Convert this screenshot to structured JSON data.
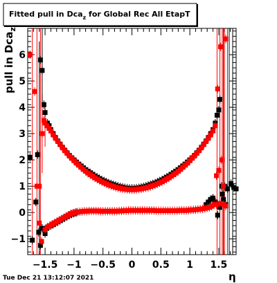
{
  "chart_data": {
    "type": "scatter",
    "title": "Fitted pull in Dca",
    "title_sub": "z",
    "title_tail": " for Global Rec All EtapT",
    "ylabel": "pull in Dca",
    "ylabel_sub": "z",
    "xlabel": "η",
    "xlim": [
      -1.8,
      1.8
    ],
    "ylim": [
      -1.6,
      7.0
    ],
    "x_ticks": [
      -1.5,
      -1,
      -0.5,
      0,
      0.5,
      1,
      1.5
    ],
    "x_tick_labels": [
      "−1.5",
      "−1",
      "−0.5",
      "0",
      "0.5",
      "1",
      "1.5"
    ],
    "y_ticks": [
      -1,
      0,
      1,
      2,
      3,
      4,
      5,
      6
    ],
    "y_tick_labels": [
      "−1",
      "0",
      "1",
      "2",
      "3",
      "4",
      "5",
      "6"
    ],
    "footer": "Tue Dec 21 13:12:07 2021",
    "series": [
      {
        "color": "#000000",
        "points": [
          [
            -1.76,
            2.1
          ],
          [
            -1.72,
            -1.05
          ],
          [
            -1.66,
            0.4
          ],
          [
            -1.63,
            2.2
          ],
          [
            -1.61,
            -0.75
          ],
          [
            -1.58,
            5.8
          ],
          [
            -1.58,
            -1.25
          ],
          [
            -1.55,
            -0.6
          ],
          [
            -1.55,
            5.4
          ],
          [
            -1.52,
            4.1
          ],
          [
            -1.5,
            3.8
          ],
          [
            -1.5,
            -0.8
          ],
          [
            -1.47,
            -0.6
          ],
          [
            -1.46,
            3.4
          ],
          [
            -1.43,
            3.3
          ],
          [
            -1.4,
            3.15
          ],
          [
            -1.4,
            -0.5
          ],
          [
            -1.36,
            3.0
          ],
          [
            -1.36,
            -0.45
          ],
          [
            -1.32,
            2.85
          ],
          [
            -1.32,
            -0.4
          ],
          [
            -1.28,
            2.72
          ],
          [
            -1.28,
            -0.35
          ],
          [
            -1.24,
            2.6
          ],
          [
            -1.24,
            -0.3
          ],
          [
            -1.2,
            2.48
          ],
          [
            -1.2,
            -0.25
          ],
          [
            -1.16,
            2.37
          ],
          [
            -1.16,
            -0.2
          ],
          [
            -1.12,
            2.27
          ],
          [
            -1.12,
            -0.15
          ],
          [
            -1.08,
            2.17
          ],
          [
            -1.08,
            -0.1
          ],
          [
            -1.04,
            2.08
          ],
          [
            -1.04,
            -0.06
          ],
          [
            -1.0,
            2.0
          ],
          [
            -1.0,
            -0.03
          ],
          [
            -0.96,
            1.92
          ],
          [
            -0.96,
            0.0
          ],
          [
            -0.92,
            1.84
          ],
          [
            -0.88,
            1.77
          ],
          [
            -0.84,
            1.7
          ],
          [
            -0.8,
            1.63
          ],
          [
            -0.76,
            1.57
          ],
          [
            -0.72,
            1.51
          ],
          [
            -0.68,
            1.45
          ],
          [
            -0.64,
            1.39
          ],
          [
            -0.6,
            1.34
          ],
          [
            -0.56,
            1.29
          ],
          [
            -0.52,
            1.24
          ],
          [
            -0.48,
            1.2
          ],
          [
            -0.44,
            1.16
          ],
          [
            -0.4,
            1.12
          ],
          [
            -0.36,
            1.09
          ],
          [
            -0.32,
            1.06
          ],
          [
            -0.28,
            1.03
          ],
          [
            -0.24,
            1.0
          ],
          [
            -0.2,
            0.98
          ],
          [
            -0.16,
            0.96
          ],
          [
            -0.12,
            0.94
          ],
          [
            -0.08,
            0.93
          ],
          [
            -0.04,
            0.92
          ],
          [
            0.0,
            0.92
          ],
          [
            0.04,
            0.92
          ],
          [
            0.08,
            0.93
          ],
          [
            0.12,
            0.94
          ],
          [
            0.16,
            0.96
          ],
          [
            0.2,
            0.98
          ],
          [
            0.24,
            1.0
          ],
          [
            0.28,
            1.03
          ],
          [
            0.32,
            1.06
          ],
          [
            0.36,
            1.09
          ],
          [
            0.4,
            1.12
          ],
          [
            0.44,
            1.16
          ],
          [
            0.48,
            1.2
          ],
          [
            0.52,
            1.24
          ],
          [
            0.56,
            1.29
          ],
          [
            0.6,
            1.34
          ],
          [
            0.64,
            1.39
          ],
          [
            0.68,
            1.45
          ],
          [
            0.72,
            1.51
          ],
          [
            0.76,
            1.57
          ],
          [
            0.8,
            1.63
          ],
          [
            0.84,
            1.7
          ],
          [
            0.88,
            1.77
          ],
          [
            0.92,
            1.84
          ],
          [
            0.96,
            1.92
          ],
          [
            1.0,
            2.0
          ],
          [
            1.04,
            2.08
          ],
          [
            1.08,
            2.17
          ],
          [
            1.12,
            2.27
          ],
          [
            1.16,
            2.37
          ],
          [
            1.2,
            2.48
          ],
          [
            1.24,
            2.6
          ],
          [
            1.28,
            2.72
          ],
          [
            1.32,
            2.85
          ],
          [
            1.36,
            3.0
          ],
          [
            1.4,
            3.15
          ],
          [
            1.44,
            3.4
          ],
          [
            1.47,
            3.7
          ],
          [
            1.5,
            3.9
          ],
          [
            1.52,
            4.3
          ],
          [
            1.55,
            1.0
          ],
          [
            1.58,
            0.5
          ],
          [
            1.62,
            0.3
          ],
          [
            1.28,
            0.3
          ],
          [
            1.32,
            0.4
          ],
          [
            1.36,
            0.5
          ],
          [
            1.4,
            0.55
          ],
          [
            1.44,
            0.4
          ],
          [
            1.48,
            -0.1
          ],
          [
            1.52,
            0.2
          ],
          [
            1.56,
            0.7
          ],
          [
            1.6,
            1.0
          ],
          [
            1.65,
            0.9
          ],
          [
            1.71,
            1.1
          ],
          [
            1.76,
            0.95
          ],
          [
            1.8,
            0.9
          ]
        ]
      },
      {
        "color": "#ff0000",
        "points": [
          [
            -1.76,
            6.0
          ],
          [
            -1.68,
            4.6
          ],
          [
            -1.64,
            1.0
          ],
          [
            -1.6,
            1.0
          ],
          [
            -1.6,
            -0.4
          ],
          [
            -1.56,
            -1.1
          ],
          [
            -1.55,
            3.0
          ],
          [
            -1.52,
            3.5
          ],
          [
            -1.5,
            3.4
          ],
          [
            -1.5,
            -0.65
          ],
          [
            -1.47,
            3.3
          ],
          [
            -1.46,
            -0.55
          ],
          [
            -1.43,
            3.2
          ],
          [
            -1.42,
            -0.5
          ],
          [
            -1.4,
            3.1
          ],
          [
            -1.38,
            -0.45
          ],
          [
            -1.36,
            2.95
          ],
          [
            -1.34,
            -0.4
          ],
          [
            -1.32,
            2.82
          ],
          [
            -1.3,
            -0.35
          ],
          [
            -1.28,
            2.7
          ],
          [
            -1.26,
            -0.3
          ],
          [
            -1.24,
            2.58
          ],
          [
            -1.22,
            -0.25
          ],
          [
            -1.2,
            2.46
          ],
          [
            -1.18,
            -0.2
          ],
          [
            -1.16,
            2.35
          ],
          [
            -1.14,
            -0.15
          ],
          [
            -1.12,
            2.25
          ],
          [
            -1.1,
            -0.1
          ],
          [
            -1.08,
            2.15
          ],
          [
            -1.06,
            -0.05
          ],
          [
            -1.04,
            2.06
          ],
          [
            -1.02,
            -0.02
          ],
          [
            -1.0,
            1.97
          ],
          [
            -0.98,
            0.0
          ],
          [
            -0.96,
            1.88
          ],
          [
            -0.94,
            0.02
          ],
          [
            -0.92,
            1.8
          ],
          [
            -0.9,
            0.03
          ],
          [
            -0.88,
            1.72
          ],
          [
            -0.86,
            0.04
          ],
          [
            -0.84,
            1.64
          ],
          [
            -0.82,
            0.05
          ],
          [
            -0.8,
            1.57
          ],
          [
            -0.78,
            0.05
          ],
          [
            -0.76,
            1.5
          ],
          [
            -0.74,
            0.06
          ],
          [
            -0.72,
            1.44
          ],
          [
            -0.7,
            0.06
          ],
          [
            -0.68,
            1.38
          ],
          [
            -0.66,
            0.06
          ],
          [
            -0.64,
            1.32
          ],
          [
            -0.62,
            0.06
          ],
          [
            -0.6,
            1.27
          ],
          [
            -0.58,
            0.06
          ],
          [
            -0.56,
            1.22
          ],
          [
            -0.54,
            0.05
          ],
          [
            -0.52,
            1.17
          ],
          [
            -0.5,
            0.05
          ],
          [
            -0.48,
            1.13
          ],
          [
            -0.46,
            0.05
          ],
          [
            -0.44,
            1.09
          ],
          [
            -0.42,
            0.05
          ],
          [
            -0.4,
            1.05
          ],
          [
            -0.38,
            0.05
          ],
          [
            -0.36,
            1.02
          ],
          [
            -0.34,
            0.05
          ],
          [
            -0.32,
            0.99
          ],
          [
            -0.3,
            0.05
          ],
          [
            -0.28,
            0.96
          ],
          [
            -0.26,
            0.05
          ],
          [
            -0.24,
            0.94
          ],
          [
            -0.22,
            0.06
          ],
          [
            -0.2,
            0.92
          ],
          [
            -0.18,
            0.06
          ],
          [
            -0.16,
            0.9
          ],
          [
            -0.14,
            0.07
          ],
          [
            -0.12,
            0.89
          ],
          [
            -0.1,
            0.07
          ],
          [
            -0.08,
            0.88
          ],
          [
            -0.06,
            0.08
          ],
          [
            -0.04,
            0.87
          ],
          [
            -0.02,
            0.08
          ],
          [
            0.0,
            0.87
          ],
          [
            0.02,
            0.08
          ],
          [
            0.04,
            0.87
          ],
          [
            0.06,
            0.08
          ],
          [
            0.08,
            0.88
          ],
          [
            0.1,
            0.08
          ],
          [
            0.12,
            0.89
          ],
          [
            0.14,
            0.08
          ],
          [
            0.16,
            0.9
          ],
          [
            0.18,
            0.08
          ],
          [
            0.2,
            0.92
          ],
          [
            0.22,
            0.08
          ],
          [
            0.24,
            0.94
          ],
          [
            0.26,
            0.08
          ],
          [
            0.28,
            0.96
          ],
          [
            0.3,
            0.08
          ],
          [
            0.32,
            0.99
          ],
          [
            0.34,
            0.08
          ],
          [
            0.36,
            1.02
          ],
          [
            0.38,
            0.08
          ],
          [
            0.4,
            1.05
          ],
          [
            0.42,
            0.07
          ],
          [
            0.44,
            1.09
          ],
          [
            0.46,
            0.07
          ],
          [
            0.48,
            1.13
          ],
          [
            0.5,
            0.07
          ],
          [
            0.52,
            1.17
          ],
          [
            0.54,
            0.07
          ],
          [
            0.56,
            1.22
          ],
          [
            0.58,
            0.07
          ],
          [
            0.6,
            1.27
          ],
          [
            0.62,
            0.07
          ],
          [
            0.64,
            1.32
          ],
          [
            0.66,
            0.07
          ],
          [
            0.68,
            1.38
          ],
          [
            0.7,
            0.07
          ],
          [
            0.72,
            1.44
          ],
          [
            0.74,
            0.07
          ],
          [
            0.76,
            1.5
          ],
          [
            0.78,
            0.07
          ],
          [
            0.8,
            1.57
          ],
          [
            0.82,
            0.08
          ],
          [
            0.84,
            1.64
          ],
          [
            0.86,
            0.08
          ],
          [
            0.88,
            1.72
          ],
          [
            0.9,
            0.08
          ],
          [
            0.92,
            1.8
          ],
          [
            0.94,
            0.08
          ],
          [
            0.96,
            1.88
          ],
          [
            0.98,
            0.09
          ],
          [
            1.0,
            1.97
          ],
          [
            1.02,
            0.1
          ],
          [
            1.04,
            2.06
          ],
          [
            1.06,
            0.1
          ],
          [
            1.08,
            2.15
          ],
          [
            1.1,
            0.11
          ],
          [
            1.12,
            2.25
          ],
          [
            1.14,
            0.12
          ],
          [
            1.16,
            2.35
          ],
          [
            1.18,
            0.13
          ],
          [
            1.2,
            2.46
          ],
          [
            1.22,
            0.14
          ],
          [
            1.24,
            2.58
          ],
          [
            1.26,
            0.16
          ],
          [
            1.28,
            2.7
          ],
          [
            1.3,
            0.18
          ],
          [
            1.32,
            2.82
          ],
          [
            1.34,
            0.2
          ],
          [
            1.36,
            2.95
          ],
          [
            1.38,
            0.24
          ],
          [
            1.4,
            3.1
          ],
          [
            1.42,
            0.3
          ],
          [
            1.44,
            3.3
          ],
          [
            1.46,
            1.4
          ],
          [
            1.48,
            4.7
          ],
          [
            1.5,
            1.6
          ],
          [
            1.53,
            6.3
          ],
          [
            1.55,
            2.0
          ],
          [
            1.58,
            1.0
          ],
          [
            1.62,
            6.6
          ],
          [
            1.58,
            0.3
          ],
          [
            1.62,
            0.25
          ],
          [
            1.52,
            0.35
          ],
          [
            1.46,
            0.3
          ]
        ]
      }
    ],
    "error_bars": [
      {
        "color": "#ff0000",
        "x": -1.72,
        "y0": -1.6,
        "y1": 7.0
      },
      {
        "color": "#ff0000",
        "x": -1.64,
        "y0": -1.6,
        "y1": 7.0
      },
      {
        "color": "#ff0000",
        "x": -1.58,
        "y0": -1.6,
        "y1": 7.0
      },
      {
        "color": "#ff0000",
        "x": -1.55,
        "y0": 1.5,
        "y1": 4.5
      },
      {
        "color": "#ff0000",
        "x": -1.5,
        "y0": 2.5,
        "y1": 4.2
      },
      {
        "color": "#000000",
        "x": -1.6,
        "y0": -1.6,
        "y1": 6.5
      },
      {
        "color": "#000000",
        "x": -1.55,
        "y0": 4.0,
        "y1": 7.0
      },
      {
        "color": "#ff0000",
        "x": 1.47,
        "y0": -1.6,
        "y1": 7.0
      },
      {
        "color": "#ff0000",
        "x": 1.52,
        "y0": -1.6,
        "y1": 7.0
      },
      {
        "color": "#ff0000",
        "x": 1.56,
        "y0": -1.6,
        "y1": 7.0
      },
      {
        "color": "#ff0000",
        "x": 1.6,
        "y0": -1.6,
        "y1": 7.0
      },
      {
        "color": "#ff0000",
        "x": 1.65,
        "y0": -1.6,
        "y1": 7.0
      },
      {
        "color": "#000000",
        "x": 1.58,
        "y0": -1.6,
        "y1": 7.0
      },
      {
        "color": "#000000",
        "x": 1.68,
        "y0": -1.6,
        "y1": 7.0
      },
      {
        "color": "#000000",
        "x": 1.74,
        "y0": -1.6,
        "y1": 7.0
      }
    ]
  }
}
